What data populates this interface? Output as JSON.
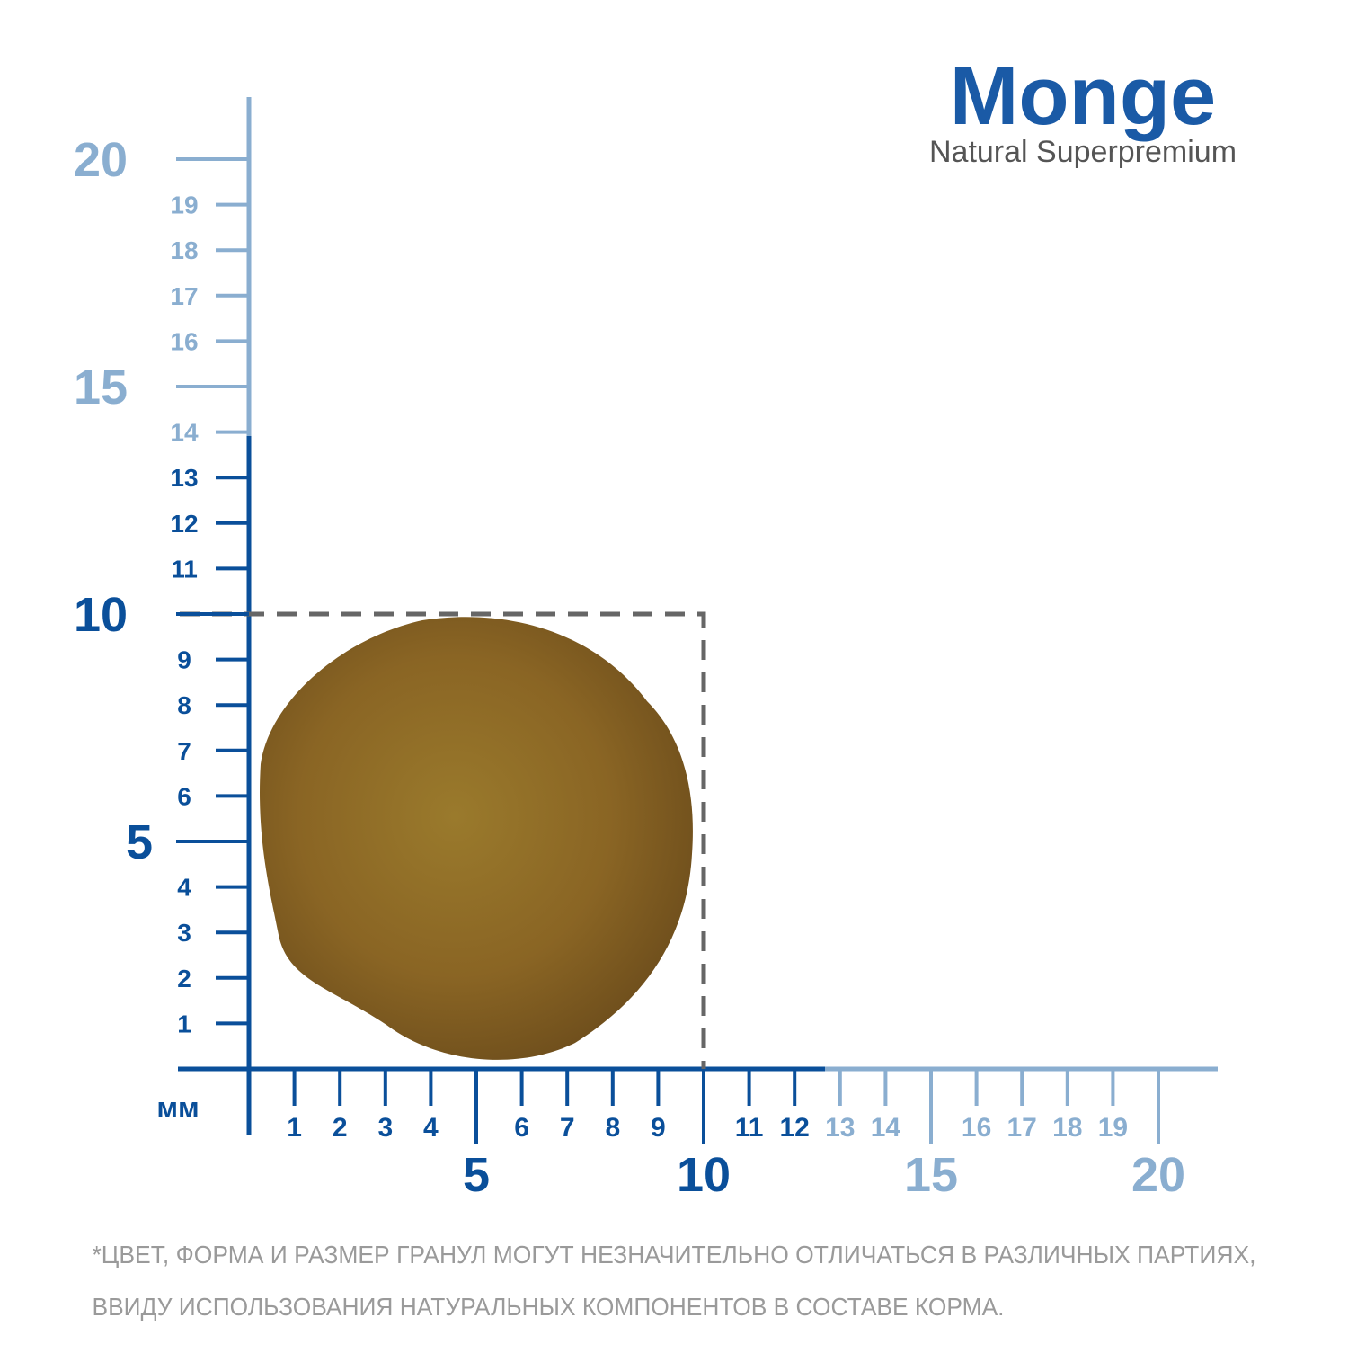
{
  "brand": {
    "name": "Monge",
    "tagline": "Natural Superpremium"
  },
  "ruler": {
    "unit": "мм",
    "x_labels": [
      1,
      2,
      3,
      4,
      5,
      6,
      7,
      8,
      9,
      10,
      11,
      12,
      13,
      14,
      15,
      16,
      17,
      18,
      19,
      20
    ],
    "y_labels": [
      1,
      2,
      3,
      4,
      5,
      6,
      7,
      8,
      9,
      10,
      11,
      12,
      13,
      14,
      15,
      16,
      17,
      18,
      19,
      20
    ]
  },
  "footnote": [
    "*ЦВЕТ, ФОРМА И РАЗМЕР ГРАНУЛ МОГУТ НЕЗНАЧИТЕЛЬНО ОТЛИЧАТЬСЯ В РАЗЛИЧНЫХ ПАРТИЯХ,",
    "ВВИДУ ИСПОЛЬЗОВАНИЯ НАТУРАЛЬНЫХ КОМПОНЕНТОВ В СОСТАВЕ КОРМА."
  ]
}
